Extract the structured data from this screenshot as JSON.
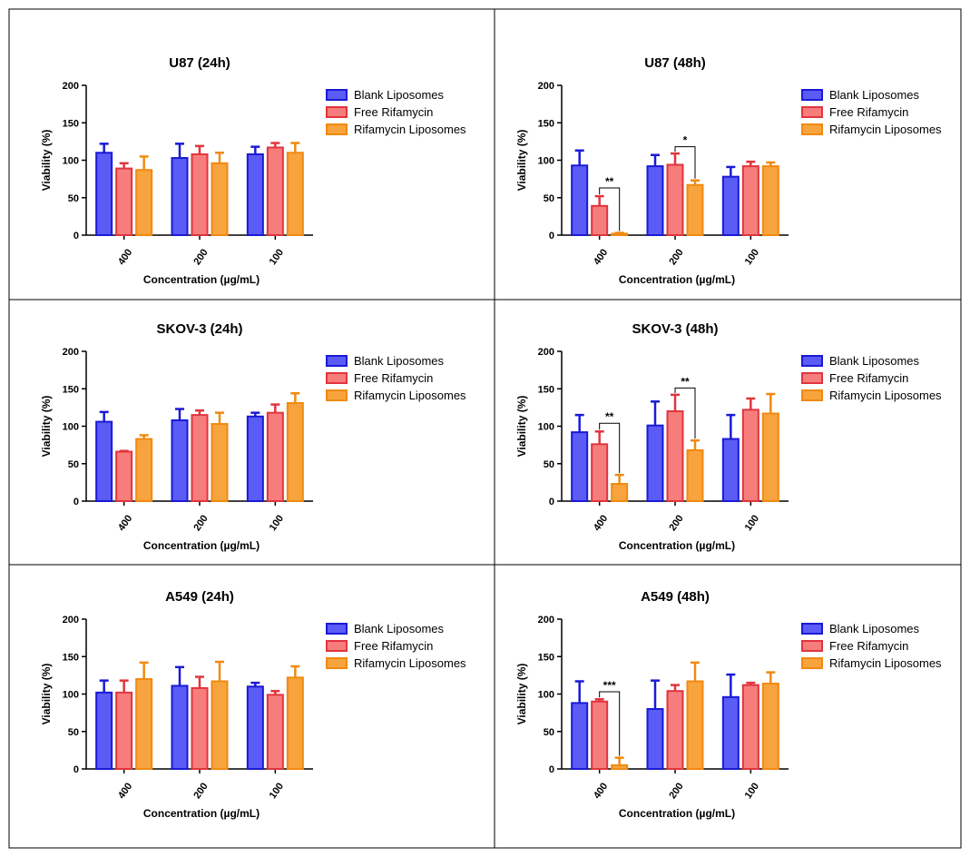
{
  "colors": {
    "blank": {
      "fill": "#5b5bf5",
      "stroke": "#1a1ad6"
    },
    "free": {
      "fill": "#f77d7d",
      "stroke": "#e0353d"
    },
    "rifa": {
      "fill": "#f8a43e",
      "stroke": "#f08a10"
    }
  },
  "chart_data": [
    {
      "type": "bar",
      "title": "U87 (24h)",
      "xlabel": "Concentration (µg/mL)",
      "ylabel": "Viability (%)",
      "ylim": [
        0,
        200
      ],
      "yticks": [
        "0",
        "50",
        "100",
        "150",
        "200"
      ],
      "categories": [
        "400",
        "200",
        "100"
      ],
      "legend": "right",
      "series": [
        {
          "name": "Blank Liposomes",
          "values": [
            110,
            103,
            108
          ],
          "errors": [
            12,
            19,
            10
          ]
        },
        {
          "name": "Free Rifamycin",
          "values": [
            89,
            108,
            117
          ],
          "errors": [
            7,
            11,
            6
          ]
        },
        {
          "name": "Rifamycin Liposomes",
          "values": [
            87,
            96,
            110
          ],
          "errors": [
            18,
            14,
            13
          ]
        }
      ],
      "annotations": []
    },
    {
      "type": "bar",
      "title": "U87 (48h)",
      "xlabel": "Concentration (µg/mL)",
      "ylabel": "Viability (%)",
      "ylim": [
        0,
        200
      ],
      "yticks": [
        "0",
        "50",
        "100",
        "150",
        "200"
      ],
      "categories": [
        "400",
        "200",
        "100"
      ],
      "legend": "right",
      "series": [
        {
          "name": "Blank Liposomes",
          "values": [
            93,
            92,
            78
          ],
          "errors": [
            20,
            15,
            13
          ]
        },
        {
          "name": "Free Rifamycin",
          "values": [
            39,
            94,
            92
          ],
          "errors": [
            13,
            15,
            6
          ]
        },
        {
          "name": "Rifamycin Liposomes",
          "values": [
            2,
            67,
            92
          ],
          "errors": [
            1,
            6,
            5
          ]
        }
      ],
      "annotations": [
        {
          "category": 0,
          "from": 1,
          "to": 2,
          "label": "**",
          "y": 63
        },
        {
          "category": 1,
          "from": 1,
          "to": 2,
          "label": "*",
          "y": 118
        }
      ]
    },
    {
      "type": "bar",
      "title": "SKOV-3 (24h)",
      "xlabel": "Concentration (µg/mL)",
      "ylabel": "Viability (%)",
      "ylim": [
        0,
        200
      ],
      "yticks": [
        "0",
        "50",
        "100",
        "150",
        "200"
      ],
      "categories": [
        "400",
        "200",
        "100"
      ],
      "legend": "right",
      "series": [
        {
          "name": "Blank Liposomes",
          "values": [
            106,
            108,
            113
          ],
          "errors": [
            13,
            15,
            5
          ]
        },
        {
          "name": "Free Rifamycin",
          "values": [
            66,
            115,
            118
          ],
          "errors": [
            1,
            6,
            11
          ]
        },
        {
          "name": "Rifamycin Liposomes",
          "values": [
            83,
            103,
            131
          ],
          "errors": [
            5,
            15,
            13
          ]
        }
      ],
      "annotations": []
    },
    {
      "type": "bar",
      "title": "SKOV-3 (48h)",
      "xlabel": "Concentration (µg/mL)",
      "ylabel": "Viability (%)",
      "ylim": [
        0,
        200
      ],
      "yticks": [
        "0",
        "50",
        "100",
        "150",
        "200"
      ],
      "categories": [
        "400",
        "200",
        "100"
      ],
      "legend": "right",
      "series": [
        {
          "name": "Blank Liposomes",
          "values": [
            92,
            101,
            83
          ],
          "errors": [
            23,
            32,
            32
          ]
        },
        {
          "name": "Free Rifamycin",
          "values": [
            76,
            120,
            122
          ],
          "errors": [
            17,
            22,
            15
          ]
        },
        {
          "name": "Rifamycin Liposomes",
          "values": [
            23,
            68,
            117
          ],
          "errors": [
            12,
            13,
            26
          ]
        }
      ],
      "annotations": [
        {
          "category": 0,
          "from": 1,
          "to": 2,
          "label": "**",
          "y": 104
        },
        {
          "category": 1,
          "from": 1,
          "to": 2,
          "label": "**",
          "y": 151
        }
      ]
    },
    {
      "type": "bar",
      "title": "A549 (24h)",
      "xlabel": "Concentration (µg/mL)",
      "ylabel": "Viability (%)",
      "ylim": [
        0,
        200
      ],
      "yticks": [
        "0",
        "50",
        "100",
        "150",
        "200"
      ],
      "categories": [
        "400",
        "200",
        "100"
      ],
      "legend": "right",
      "series": [
        {
          "name": "Blank Liposomes",
          "values": [
            102,
            111,
            110
          ],
          "errors": [
            16,
            25,
            5
          ]
        },
        {
          "name": "Free Rifamycin",
          "values": [
            102,
            108,
            99
          ],
          "errors": [
            16,
            15,
            5
          ]
        },
        {
          "name": "Rifamycin Liposomes",
          "values": [
            120,
            117,
            122
          ],
          "errors": [
            22,
            26,
            15
          ]
        }
      ],
      "annotations": []
    },
    {
      "type": "bar",
      "title": "A549 (48h)",
      "xlabel": "Concentration (µg/mL)",
      "ylabel": "Viability (%)",
      "ylim": [
        0,
        200
      ],
      "yticks": [
        "0",
        "50",
        "100",
        "150",
        "200"
      ],
      "categories": [
        "400",
        "200",
        "100"
      ],
      "legend": "right",
      "series": [
        {
          "name": "Blank Liposomes",
          "values": [
            88,
            80,
            96
          ],
          "errors": [
            29,
            38,
            30
          ]
        },
        {
          "name": "Free Rifamycin",
          "values": [
            90,
            104,
            112
          ],
          "errors": [
            3,
            8,
            3
          ]
        },
        {
          "name": "Rifamycin Liposomes",
          "values": [
            5,
            117,
            114
          ],
          "errors": [
            10,
            25,
            15
          ]
        }
      ],
      "annotations": [
        {
          "category": 0,
          "from": 1,
          "to": 2,
          "label": "***",
          "y": 103
        }
      ]
    }
  ]
}
